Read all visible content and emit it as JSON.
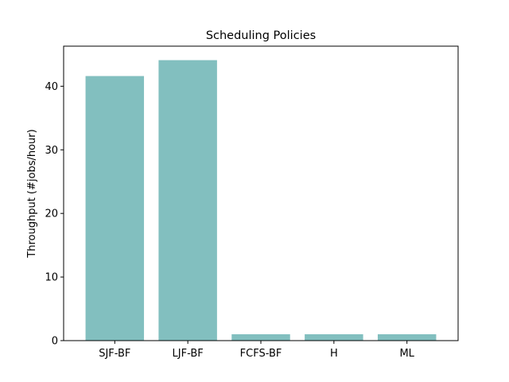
{
  "chart_data": {
    "type": "bar",
    "title": "Scheduling Policies",
    "xlabel": "",
    "ylabel": "Throughput (#jobs/hour)",
    "categories": [
      "SJF-BF",
      "LJF-BF",
      "FCFS-BF",
      "H",
      "ML"
    ],
    "values": [
      41.6,
      44.1,
      1.0,
      1.0,
      1.0
    ],
    "ylim": [
      0,
      46.3
    ],
    "yticks": [
      0,
      10,
      20,
      30,
      40
    ],
    "bar_color": "#82bfbf",
    "grid": false,
    "legend": "none"
  }
}
